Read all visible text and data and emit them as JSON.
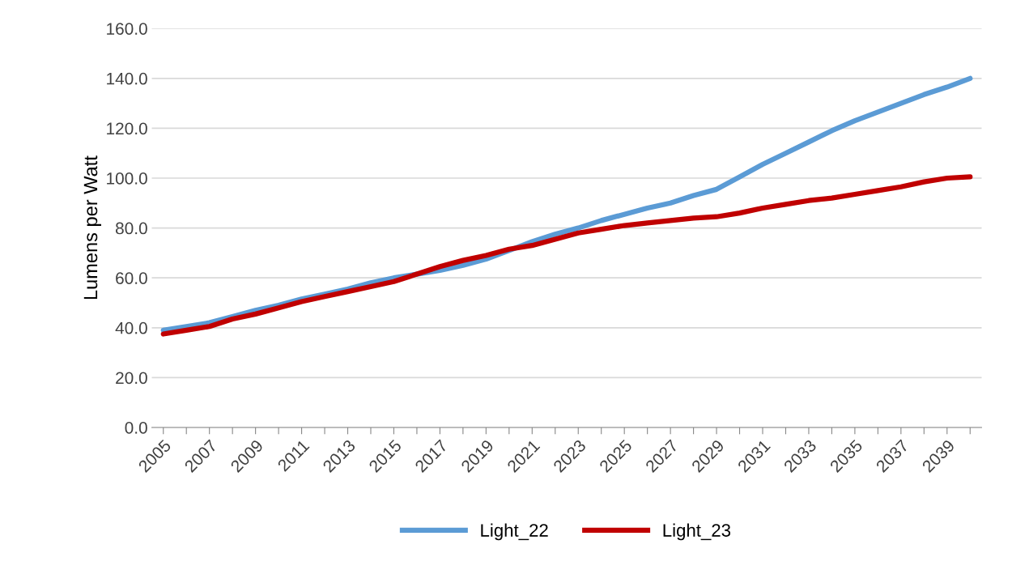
{
  "chart_data": {
    "type": "line",
    "ylabel": "Lumens per Watt",
    "categories": [
      "2005",
      null,
      "2007",
      null,
      "2009",
      null,
      "2011",
      null,
      "2013",
      null,
      "2015",
      null,
      "2017",
      null,
      "2019",
      null,
      "2021",
      null,
      "2023",
      null,
      "2025",
      null,
      "2027",
      null,
      "2029",
      null,
      "2031",
      null,
      "2033",
      null,
      "2035",
      null,
      "2037",
      null,
      "2039",
      null
    ],
    "series": [
      {
        "name": "Light_22",
        "color": "#5b9bd5",
        "values": [
          39,
          40.5,
          42,
          44.5,
          47,
          49,
          51.5,
          53.5,
          55.5,
          58,
          60,
          61.5,
          63,
          65,
          67.5,
          71,
          74.5,
          77.5,
          80,
          83,
          85.5,
          88,
          90,
          93,
          95.5,
          100.5,
          105.5,
          110,
          114.5,
          119,
          123,
          126.5,
          130,
          133.5,
          136.5,
          140
        ]
      },
      {
        "name": "Light_23",
        "color": "#c00000",
        "values": [
          37.5,
          39,
          40.5,
          43.5,
          45.5,
          48,
          50.5,
          52.5,
          54.5,
          56.5,
          58.5,
          61.5,
          64.5,
          67,
          69,
          71.5,
          73,
          75.5,
          78,
          79.5,
          81,
          82,
          83,
          84,
          84.5,
          86,
          88,
          89.5,
          91,
          92,
          93.5,
          95,
          96.5,
          98.5,
          100,
          100.5
        ]
      }
    ],
    "ylim": [
      0,
      160
    ],
    "yticks": [
      {
        "value": 0,
        "label": "0.0"
      },
      {
        "value": 20,
        "label": "20.0"
      },
      {
        "value": 40,
        "label": "40.0"
      },
      {
        "value": 60,
        "label": "60.0"
      },
      {
        "value": 80,
        "label": "80.0"
      },
      {
        "value": 100,
        "label": "100.0"
      },
      {
        "value": 120,
        "label": "120.0"
      },
      {
        "value": 140,
        "label": "140.0"
      },
      {
        "value": 160,
        "label": "160.0"
      }
    ],
    "grid": "y",
    "legend": "bottom",
    "line_style": "solid",
    "marker": "none"
  }
}
